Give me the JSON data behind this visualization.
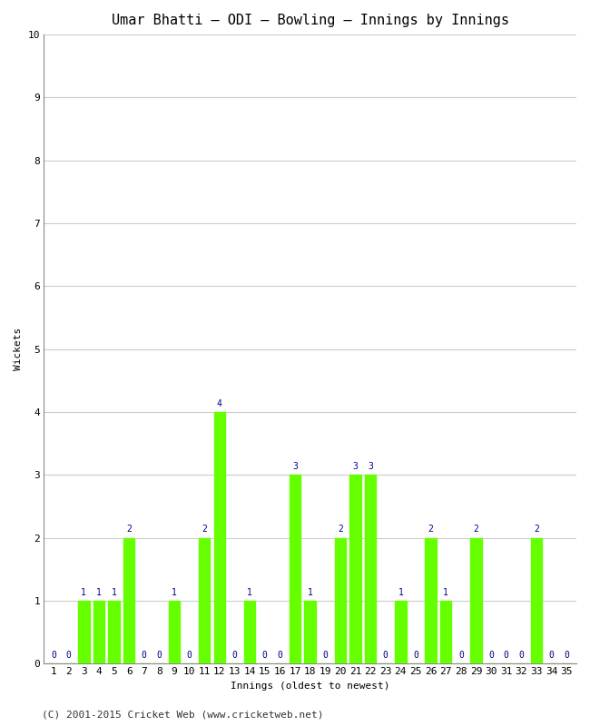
{
  "title": "Umar Bhatti – ODI – Bowling – Innings by Innings",
  "xlabel": "Innings (oldest to newest)",
  "ylabel": "Wickets",
  "innings": [
    1,
    2,
    3,
    4,
    5,
    6,
    7,
    8,
    9,
    10,
    11,
    12,
    13,
    14,
    15,
    16,
    17,
    18,
    19,
    20,
    21,
    22,
    23,
    24,
    25,
    26,
    27,
    28,
    29,
    30,
    31,
    32,
    33,
    34,
    35
  ],
  "wickets": [
    0,
    0,
    1,
    1,
    1,
    2,
    0,
    0,
    1,
    0,
    2,
    4,
    0,
    1,
    0,
    0,
    3,
    1,
    0,
    2,
    3,
    3,
    0,
    1,
    0,
    2,
    1,
    0,
    2,
    0,
    0,
    0,
    2,
    0,
    0
  ],
  "ylim": [
    0,
    10
  ],
  "yticks": [
    0,
    1,
    2,
    3,
    4,
    5,
    6,
    7,
    8,
    9,
    10
  ],
  "bar_color": "#66ff00",
  "label_color": "#000080",
  "background_color": "#ffffff",
  "grid_color": "#cccccc",
  "title_fontsize": 11,
  "axis_fontsize": 8,
  "tick_fontsize": 8,
  "label_fontsize": 7,
  "footer": "(C) 2001-2015 Cricket Web (www.cricketweb.net)",
  "footer_fontsize": 8
}
